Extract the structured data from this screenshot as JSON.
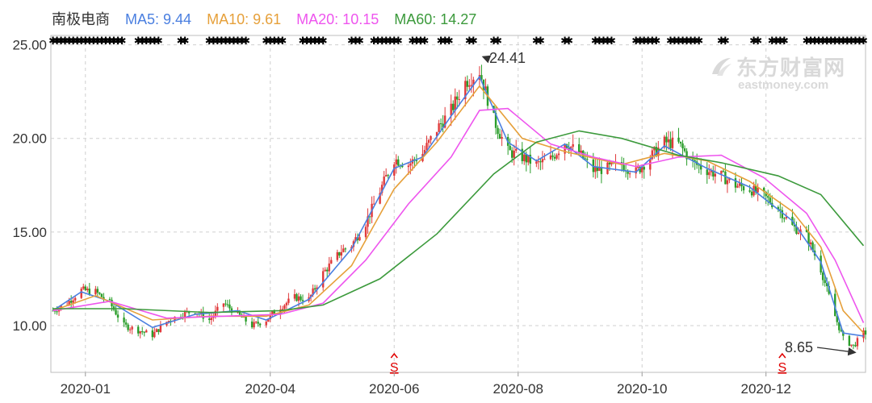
{
  "legend": {
    "stock_name": "南极电商",
    "ma5": "MA5: 9.44",
    "ma10": "MA10: 9.61",
    "ma20": "MA20: 10.15",
    "ma60": "MA60: 14.27"
  },
  "watermark": {
    "cn": "东方财富网",
    "en": "eastmoney.com"
  },
  "colors": {
    "up": "#e0393b",
    "down": "#2a9d2a",
    "ma5": "#4a7fe0",
    "ma10": "#e6a03a",
    "ma20": "#ee55ee",
    "ma60": "#3c9a3c",
    "grid": "#cfcfcf",
    "signal": "#e00000"
  },
  "chart_data": {
    "type": "candlestick",
    "ylim": [
      7.5,
      25.5
    ],
    "yticks": [
      "10.00",
      "15.00",
      "20.00",
      "25.00"
    ],
    "xtick_labels": [
      "2020-01",
      "2020-04",
      "2020-06",
      "2020-08",
      "2020-10",
      "2020-12"
    ],
    "high_marker": {
      "label": "24.41",
      "value": 24.41
    },
    "low_marker": {
      "label": "8.65",
      "value": 8.65
    },
    "signal_label": "S",
    "signal_dates": [
      "2020-06-01",
      "2020-12-09"
    ],
    "close_path": [
      [
        "2019-12-16",
        10.8
      ],
      [
        "2019-12-23",
        11.2
      ],
      [
        "2019-12-30",
        11.9
      ],
      [
        "2020-01-06",
        11.8
      ],
      [
        "2020-01-13",
        11.2
      ],
      [
        "2020-01-20",
        10.0
      ],
      [
        "2020-02-03",
        9.5
      ],
      [
        "2020-02-10",
        10.2
      ],
      [
        "2020-02-17",
        10.6
      ],
      [
        "2020-02-24",
        10.8
      ],
      [
        "2020-03-02",
        10.3
      ],
      [
        "2020-03-09",
        11.2
      ],
      [
        "2020-03-16",
        10.6
      ],
      [
        "2020-03-23",
        10.0
      ],
      [
        "2020-03-30",
        10.3
      ],
      [
        "2020-04-06",
        11.0
      ],
      [
        "2020-04-13",
        11.5
      ],
      [
        "2020-04-20",
        11.4
      ],
      [
        "2020-04-27",
        12.8
      ],
      [
        "2020-05-06",
        14.0
      ],
      [
        "2020-05-11",
        14.3
      ],
      [
        "2020-05-18",
        15.5
      ],
      [
        "2020-05-25",
        17.2
      ],
      [
        "2020-06-01",
        18.9
      ],
      [
        "2020-06-08",
        18.6
      ],
      [
        "2020-06-15",
        19.2
      ],
      [
        "2020-06-22",
        20.5
      ],
      [
        "2020-06-29",
        21.5
      ],
      [
        "2020-07-06",
        23.0
      ],
      [
        "2020-07-13",
        23.6
      ],
      [
        "2020-07-20",
        21.0
      ],
      [
        "2020-07-27",
        19.3
      ],
      [
        "2020-08-03",
        19.0
      ],
      [
        "2020-08-10",
        18.6
      ],
      [
        "2020-08-17",
        18.9
      ],
      [
        "2020-08-24",
        19.8
      ],
      [
        "2020-08-31",
        19.2
      ],
      [
        "2020-09-07",
        18.3
      ],
      [
        "2020-09-14",
        18.4
      ],
      [
        "2020-09-21",
        18.6
      ],
      [
        "2020-09-28",
        18.2
      ],
      [
        "2020-10-12",
        19.8
      ],
      [
        "2020-10-19",
        19.7
      ],
      [
        "2020-10-26",
        18.7
      ],
      [
        "2020-11-02",
        18.3
      ],
      [
        "2020-11-09",
        18.0
      ],
      [
        "2020-11-16",
        17.5
      ],
      [
        "2020-11-23",
        17.3
      ],
      [
        "2020-11-30",
        16.9
      ],
      [
        "2020-12-07",
        16.3
      ],
      [
        "2020-12-14",
        15.3
      ],
      [
        "2020-12-21",
        14.8
      ],
      [
        "2020-12-28",
        13.0
      ],
      [
        "2021-01-04",
        10.5
      ],
      [
        "2021-01-08",
        9.3
      ],
      [
        "2021-01-13",
        8.9
      ],
      [
        "2021-01-18",
        9.6
      ]
    ],
    "ma_series": [
      {
        "name": "MA5",
        "color_key": "ma5",
        "points": [
          [
            "2019-12-16",
            10.8
          ],
          [
            "2019-12-30",
            11.8
          ],
          [
            "2020-01-13",
            11.3
          ],
          [
            "2020-02-03",
            9.9
          ],
          [
            "2020-02-24",
            10.6
          ],
          [
            "2020-03-16",
            10.8
          ],
          [
            "2020-03-30",
            10.3
          ],
          [
            "2020-04-20",
            11.4
          ],
          [
            "2020-05-11",
            14.1
          ],
          [
            "2020-06-01",
            18.4
          ],
          [
            "2020-06-15",
            19.0
          ],
          [
            "2020-06-29",
            21.2
          ],
          [
            "2020-07-13",
            23.3
          ],
          [
            "2020-07-27",
            19.8
          ],
          [
            "2020-08-10",
            18.8
          ],
          [
            "2020-08-24",
            19.7
          ],
          [
            "2020-09-07",
            18.5
          ],
          [
            "2020-09-28",
            18.2
          ],
          [
            "2020-10-12",
            19.6
          ],
          [
            "2020-11-02",
            18.4
          ],
          [
            "2020-11-23",
            17.4
          ],
          [
            "2020-12-14",
            15.6
          ],
          [
            "2020-12-28",
            13.4
          ],
          [
            "2021-01-08",
            9.6
          ],
          [
            "2021-01-18",
            9.44
          ]
        ]
      },
      {
        "name": "MA10",
        "color_key": "ma10",
        "points": [
          [
            "2019-12-16",
            10.8
          ],
          [
            "2020-01-06",
            11.6
          ],
          [
            "2020-02-03",
            10.3
          ],
          [
            "2020-03-02",
            10.5
          ],
          [
            "2020-03-30",
            10.5
          ],
          [
            "2020-04-20",
            11.1
          ],
          [
            "2020-05-11",
            13.2
          ],
          [
            "2020-06-01",
            17.3
          ],
          [
            "2020-06-22",
            19.8
          ],
          [
            "2020-07-13",
            22.8
          ],
          [
            "2020-08-03",
            20.0
          ],
          [
            "2020-08-24",
            19.3
          ],
          [
            "2020-09-21",
            18.6
          ],
          [
            "2020-10-12",
            19.2
          ],
          [
            "2020-11-02",
            18.8
          ],
          [
            "2020-11-23",
            17.7
          ],
          [
            "2020-12-14",
            16.1
          ],
          [
            "2020-12-28",
            14.2
          ],
          [
            "2021-01-08",
            10.8
          ],
          [
            "2021-01-18",
            9.61
          ]
        ]
      },
      {
        "name": "MA20",
        "color_key": "ma20",
        "points": [
          [
            "2019-12-16",
            10.8
          ],
          [
            "2020-01-13",
            11.3
          ],
          [
            "2020-02-10",
            10.4
          ],
          [
            "2020-03-09",
            10.5
          ],
          [
            "2020-04-06",
            10.6
          ],
          [
            "2020-04-27",
            11.2
          ],
          [
            "2020-05-18",
            13.5
          ],
          [
            "2020-06-08",
            16.5
          ],
          [
            "2020-06-29",
            19.0
          ],
          [
            "2020-07-13",
            21.5
          ],
          [
            "2020-07-27",
            21.6
          ],
          [
            "2020-08-17",
            19.7
          ],
          [
            "2020-09-07",
            19.0
          ],
          [
            "2020-09-28",
            18.5
          ],
          [
            "2020-10-19",
            19.0
          ],
          [
            "2020-11-09",
            19.1
          ],
          [
            "2020-11-30",
            17.9
          ],
          [
            "2020-12-21",
            16.0
          ],
          [
            "2021-01-04",
            13.5
          ],
          [
            "2021-01-18",
            10.15
          ]
        ]
      },
      {
        "name": "MA60",
        "color_key": "ma60",
        "points": [
          [
            "2019-12-16",
            10.9
          ],
          [
            "2020-01-20",
            10.9
          ],
          [
            "2020-03-02",
            10.7
          ],
          [
            "2020-04-06",
            10.8
          ],
          [
            "2020-04-27",
            11.1
          ],
          [
            "2020-05-25",
            12.5
          ],
          [
            "2020-06-22",
            14.9
          ],
          [
            "2020-07-20",
            18.1
          ],
          [
            "2020-08-10",
            19.8
          ],
          [
            "2020-08-31",
            20.4
          ],
          [
            "2020-09-21",
            20.0
          ],
          [
            "2020-10-19",
            19.1
          ],
          [
            "2020-11-09",
            18.7
          ],
          [
            "2020-12-07",
            18.0
          ],
          [
            "2020-12-28",
            17.0
          ],
          [
            "2021-01-18",
            14.27
          ]
        ]
      }
    ]
  }
}
